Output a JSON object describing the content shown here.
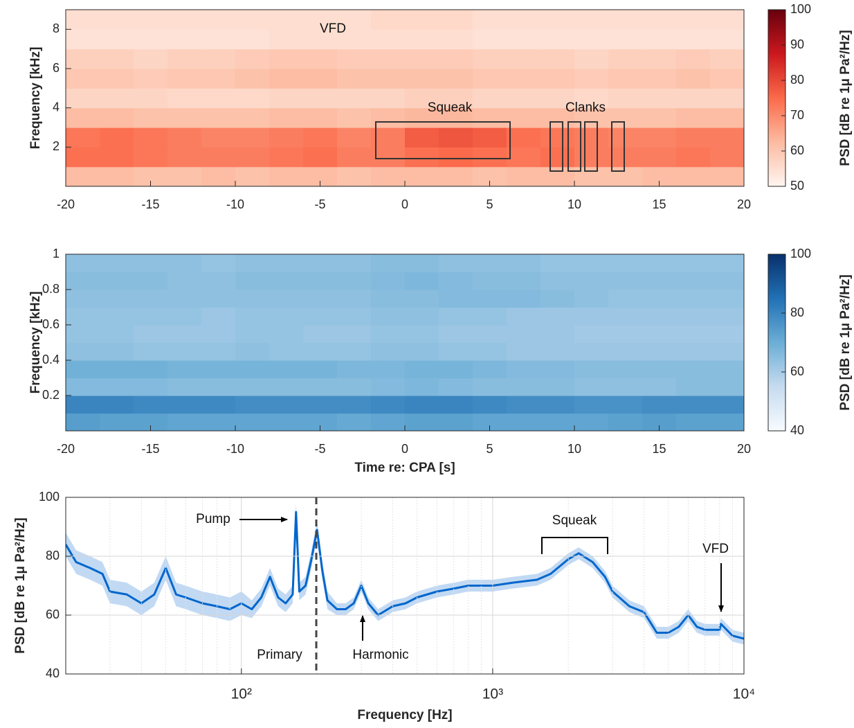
{
  "chart_data": [
    {
      "type": "heatmap",
      "ylabel": "Frequency [kHz]",
      "colorbar_label": "PSD [dB re 1μ Pa²/Hz]",
      "x": [
        -19,
        -17,
        -15,
        -13,
        -11,
        -9,
        -7,
        -5,
        -3,
        -1,
        1,
        3,
        5,
        7,
        9,
        11,
        13,
        15,
        17,
        19
      ],
      "y": [
        0.5,
        1.5,
        2.5,
        3.5,
        4.5,
        5.5,
        6.5,
        7.5,
        8.5
      ],
      "z": [
        [
          62,
          62,
          61,
          61,
          62,
          61,
          62,
          62,
          61,
          62,
          62,
          62,
          61,
          62,
          62,
          61,
          61,
          62,
          62,
          62
        ],
        [
          74,
          74,
          73,
          72,
          72,
          72,
          73,
          74,
          72,
          72,
          74,
          75,
          74,
          73,
          74,
          72,
          72,
          72,
          73,
          72
        ],
        [
          73,
          74,
          73,
          72,
          71,
          71,
          72,
          73,
          71,
          72,
          77,
          78,
          77,
          74,
          73,
          72,
          71,
          71,
          72,
          72
        ],
        [
          62,
          62,
          61,
          61,
          61,
          61,
          62,
          62,
          61,
          62,
          63,
          63,
          62,
          62,
          62,
          61,
          61,
          61,
          62,
          62
        ],
        [
          57,
          57,
          57,
          56,
          56,
          56,
          57,
          57,
          57,
          57,
          58,
          58,
          57,
          57,
          57,
          56,
          57,
          57,
          57,
          57
        ],
        [
          60,
          60,
          59,
          60,
          60,
          61,
          62,
          62,
          61,
          61,
          61,
          61,
          60,
          60,
          60,
          59,
          60,
          60,
          61,
          60
        ],
        [
          58,
          58,
          57,
          58,
          58,
          59,
          60,
          60,
          59,
          59,
          59,
          59,
          58,
          58,
          58,
          57,
          58,
          58,
          59,
          58
        ],
        [
          54,
          54,
          54,
          54,
          54,
          54,
          55,
          55,
          55,
          55,
          55,
          55,
          54,
          54,
          54,
          54,
          54,
          54,
          54,
          54
        ],
        [
          55,
          55,
          55,
          55,
          55,
          55,
          55,
          55,
          55,
          56,
          56,
          56,
          55,
          55,
          55,
          55,
          55,
          55,
          55,
          55
        ]
      ],
      "xlim": [
        -20,
        20
      ],
      "xticks": [
        -20,
        -15,
        -10,
        -5,
        0,
        5,
        10,
        15,
        20
      ],
      "ylim": [
        0,
        9
      ],
      "yticks": [
        2,
        4,
        6,
        8
      ],
      "clim": [
        50,
        100
      ],
      "cticks": [
        50,
        60,
        70,
        80,
        90,
        100
      ],
      "colormap": [
        "#fff5f0",
        "#fcbba1",
        "#fb6a4a",
        "#cb181d",
        "#67000d"
      ],
      "annotations": [
        "VFD",
        "Squeak",
        "Clanks"
      ]
    },
    {
      "type": "heatmap",
      "ylabel": "Frequency [kHz]",
      "xlabel": "Time re: CPA [s]",
      "colorbar_label": "PSD [dB re 1μ Pa²/Hz]",
      "x": [
        -19,
        -17,
        -15,
        -13,
        -11,
        -9,
        -7,
        -5,
        -3,
        -1,
        1,
        3,
        5,
        7,
        9,
        11,
        13,
        15,
        17,
        19
      ],
      "y": [
        0.05,
        0.15,
        0.25,
        0.35,
        0.45,
        0.55,
        0.65,
        0.75,
        0.85,
        0.95
      ],
      "z": [
        [
          74,
          73,
          73,
          72,
          72,
          72,
          72,
          72,
          71,
          72,
          73,
          73,
          72,
          72,
          72,
          72,
          73,
          74,
          73,
          73
        ],
        [
          80,
          80,
          79,
          79,
          79,
          78,
          78,
          78,
          78,
          79,
          80,
          80,
          79,
          78,
          78,
          77,
          77,
          78,
          78,
          78
        ],
        [
          66,
          66,
          66,
          65,
          65,
          65,
          65,
          65,
          65,
          66,
          67,
          66,
          65,
          65,
          65,
          64,
          64,
          64,
          65,
          65
        ],
        [
          69,
          69,
          69,
          68,
          68,
          68,
          68,
          68,
          67,
          67,
          68,
          68,
          67,
          66,
          66,
          65,
          65,
          65,
          65,
          65
        ],
        [
          64,
          64,
          63,
          63,
          63,
          64,
          63,
          63,
          63,
          64,
          64,
          63,
          63,
          62,
          62,
          62,
          62,
          62,
          62,
          62
        ],
        [
          63,
          63,
          62,
          62,
          62,
          63,
          63,
          62,
          62,
          63,
          63,
          62,
          62,
          62,
          62,
          61,
          61,
          61,
          61,
          61
        ],
        [
          63,
          63,
          63,
          63,
          62,
          63,
          63,
          63,
          63,
          64,
          64,
          63,
          63,
          62,
          62,
          62,
          62,
          62,
          62,
          62
        ],
        [
          64,
          64,
          64,
          64,
          64,
          64,
          64,
          64,
          64,
          65,
          65,
          66,
          66,
          66,
          65,
          64,
          63,
          63,
          63,
          63
        ],
        [
          65,
          65,
          65,
          64,
          64,
          65,
          65,
          65,
          65,
          66,
          67,
          66,
          65,
          65,
          64,
          64,
          64,
          64,
          64,
          64
        ],
        [
          64,
          64,
          64,
          64,
          63,
          64,
          64,
          64,
          64,
          65,
          65,
          64,
          64,
          64,
          63,
          63,
          63,
          63,
          63,
          63
        ]
      ],
      "xlim": [
        -20,
        20
      ],
      "xticks": [
        -20,
        -15,
        -10,
        -5,
        0,
        5,
        10,
        15,
        20
      ],
      "ylim": [
        0,
        1
      ],
      "yticks": [
        0.2,
        0.4,
        0.6,
        0.8,
        1
      ],
      "clim": [
        40,
        100
      ],
      "cticks": [
        40,
        60,
        80,
        100
      ],
      "colormap": [
        "#f7fbff",
        "#c6dbef",
        "#6baed6",
        "#2171b5",
        "#08306b"
      ]
    },
    {
      "type": "line",
      "xlabel": "Frequency [Hz]",
      "ylabel": "PSD [dB re 1μ Pa²/Hz]",
      "log_x": true,
      "grid": true,
      "x": [
        20,
        22,
        25,
        28,
        30,
        35,
        40,
        45,
        50,
        55,
        60,
        70,
        80,
        90,
        100,
        110,
        120,
        130,
        140,
        150,
        160,
        165,
        170,
        180,
        190,
        200,
        210,
        220,
        240,
        260,
        280,
        300,
        320,
        350,
        400,
        450,
        500,
        600,
        700,
        800,
        1000,
        1200,
        1500,
        1700,
        2000,
        2200,
        2500,
        2800,
        3000,
        3500,
        4000,
        4500,
        5000,
        5500,
        6000,
        6500,
        7000,
        8000,
        8100,
        9000,
        10000
      ],
      "series": [
        {
          "color": "#0066cc",
          "band_color": "#b3d0f0",
          "values": [
            84,
            78,
            76,
            74,
            68,
            67,
            64,
            67,
            76,
            67,
            66,
            64,
            63,
            62,
            64,
            62,
            66,
            73,
            66,
            64,
            67,
            95,
            68,
            70,
            79,
            89,
            75,
            65,
            62,
            62,
            64,
            70,
            64,
            60,
            63,
            64,
            66,
            68,
            69,
            70,
            70,
            71,
            72,
            74,
            79,
            81,
            78,
            73,
            68,
            63,
            61,
            54,
            54,
            56,
            60,
            56,
            55,
            55,
            57,
            53,
            52
          ],
          "lower": [
            80,
            74,
            72,
            70,
            64,
            63,
            60,
            63,
            72,
            63,
            62,
            60,
            59,
            58,
            60,
            59,
            63,
            70,
            63,
            61,
            64,
            92,
            65,
            67,
            76,
            86,
            72,
            62,
            60,
            60,
            62,
            68,
            62,
            58,
            61,
            62,
            64,
            66,
            67,
            68,
            68,
            69,
            70,
            72,
            77,
            79,
            76,
            71,
            66,
            61,
            59,
            52,
            52,
            54,
            58,
            54,
            53,
            53,
            55,
            51,
            50
          ],
          "upper": [
            88,
            82,
            80,
            78,
            72,
            71,
            68,
            71,
            80,
            71,
            70,
            68,
            67,
            66,
            68,
            65,
            69,
            76,
            69,
            67,
            70,
            98,
            71,
            73,
            82,
            92,
            78,
            68,
            64,
            64,
            66,
            72,
            66,
            62,
            65,
            66,
            68,
            70,
            71,
            72,
            72,
            73,
            74,
            76,
            81,
            83,
            80,
            75,
            70,
            65,
            63,
            56,
            56,
            58,
            62,
            58,
            57,
            57,
            59,
            55,
            54
          ]
        }
      ],
      "xlim": [
        20,
        10000
      ],
      "xticks": [
        {
          "value": 100,
          "label": "10²"
        },
        {
          "value": 1000,
          "label": "10³"
        },
        {
          "value": 10000,
          "label": "10⁴"
        }
      ],
      "xminor": [
        30,
        40,
        50,
        60,
        70,
        80,
        90,
        200,
        300,
        400,
        500,
        600,
        700,
        800,
        900,
        2000,
        3000,
        4000,
        5000,
        6000,
        7000,
        8000,
        9000
      ],
      "ylim": [
        40,
        100
      ],
      "yticks": [
        40,
        60,
        80,
        100
      ],
      "annotations": [
        "Pump",
        "Primary",
        "Harmonic",
        "Squeak",
        "VFD"
      ]
    }
  ]
}
